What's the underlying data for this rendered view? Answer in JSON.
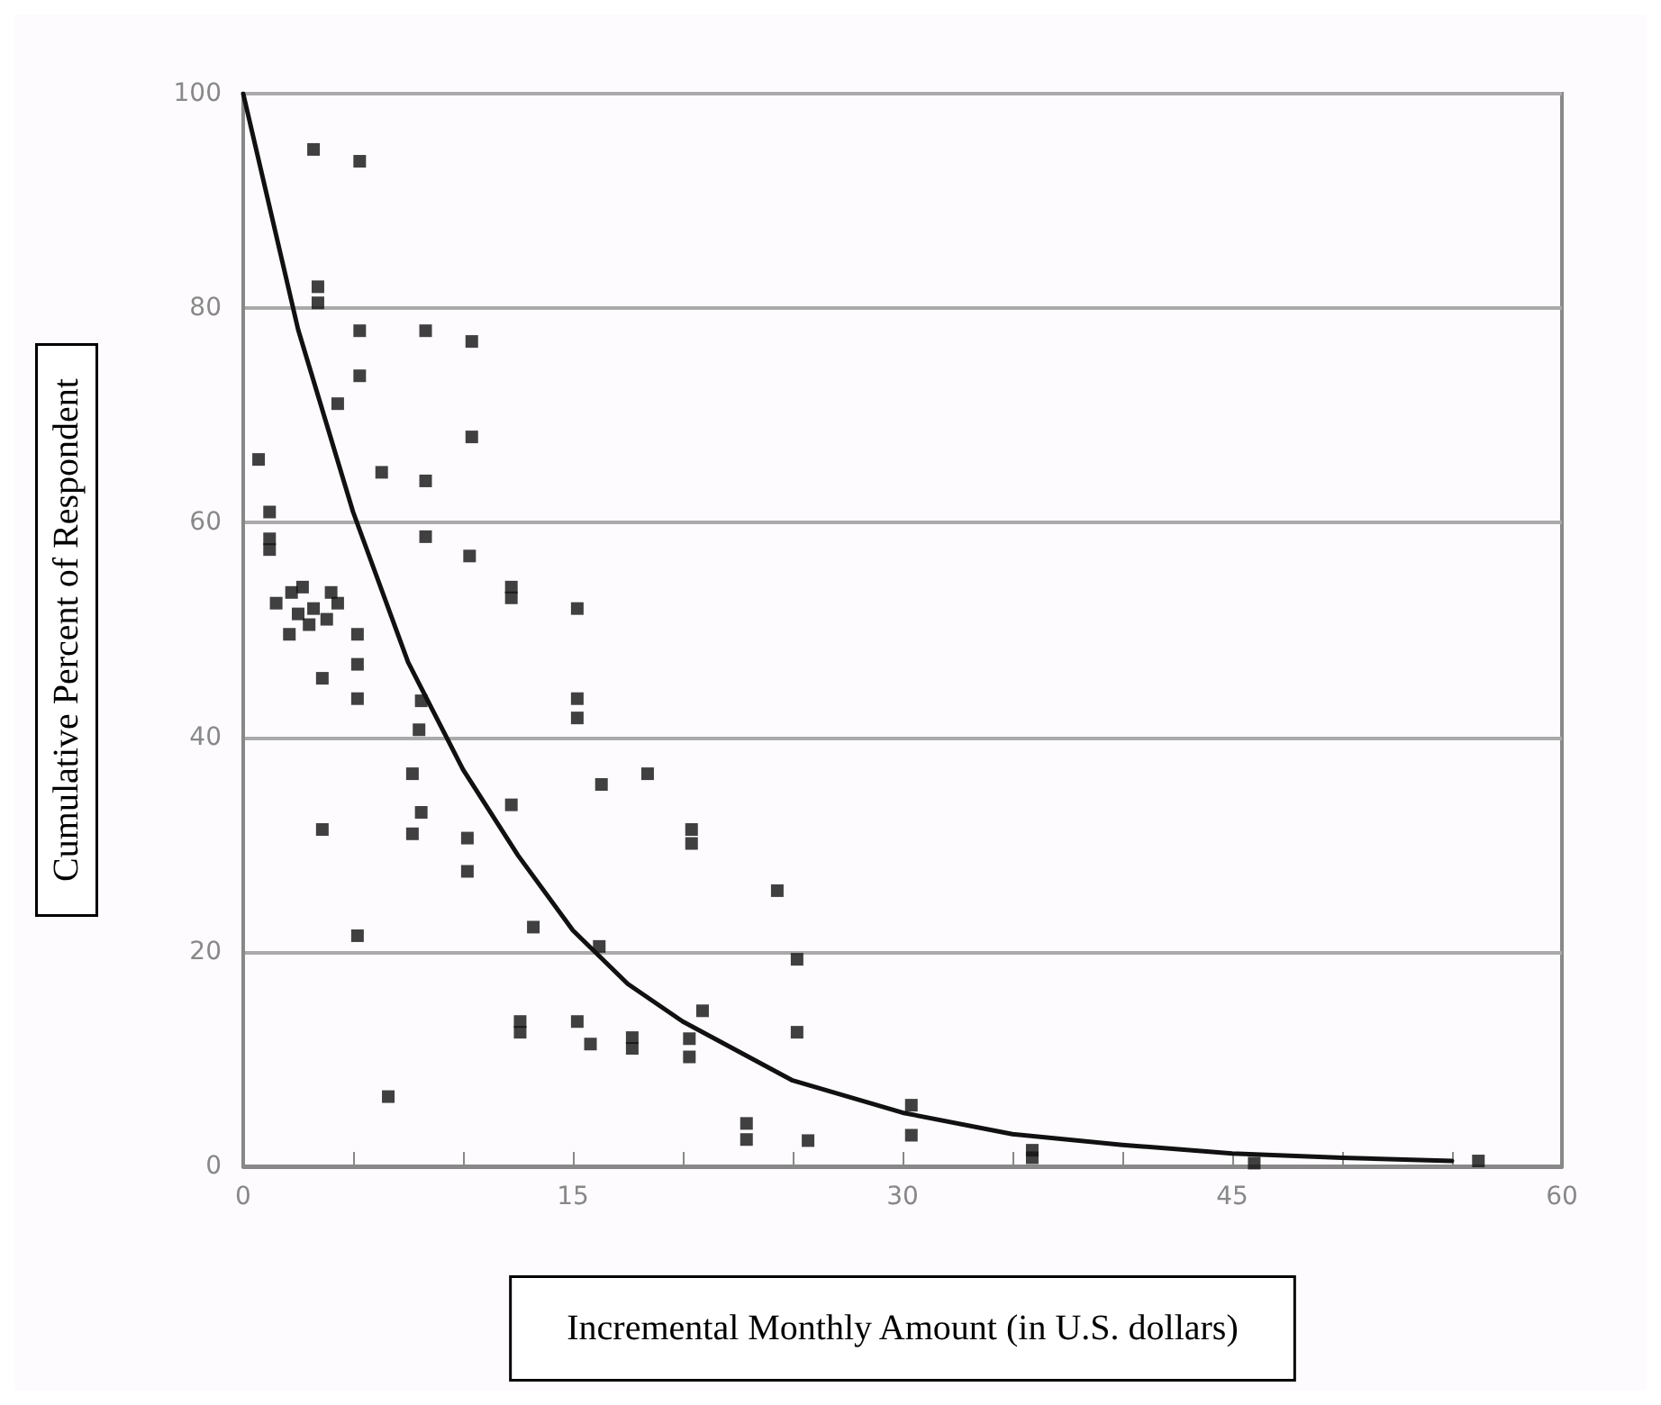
{
  "chart_data": {
    "type": "scatter",
    "xlabel": "Incremental Monthly Amount (in U.S. dollars)",
    "ylabel": "Cumulative Percent of Respondent",
    "series": [
      {
        "marker": "square",
        "color": "#111111",
        "x": [
          3.2,
          5.3,
          3.4,
          3.4,
          5.3,
          8.3,
          10.4,
          5.3,
          4.3,
          10.4,
          0.7,
          6.3,
          8.3,
          1.2,
          1.2,
          1.2,
          8.3,
          10.3,
          12.2,
          12.2,
          15.2,
          1.5,
          2.2,
          2.5,
          3.0,
          3.2,
          3.8,
          4.0,
          4.3,
          2.7,
          2.1,
          5.2,
          5.2,
          3.6,
          5.2,
          8.1,
          8.0,
          15.2,
          15.2,
          7.7,
          16.3,
          18.4,
          12.2,
          8.1,
          7.7,
          10.2,
          3.6,
          20.4,
          20.4,
          10.2,
          13.2,
          5.2,
          16.2,
          20.9,
          12.6,
          12.6,
          15.2,
          15.8,
          17.7,
          17.7,
          20.3,
          20.3,
          6.6,
          22.9,
          22.9,
          24.3,
          25.2,
          25.2,
          25.7,
          30.4,
          30.4,
          35.9,
          35.9,
          46,
          56.2
        ],
        "values": [
          94.8,
          93.7,
          82,
          80.5,
          77.9,
          77.9,
          76.9,
          73.7,
          71.1,
          68,
          65.9,
          64.7,
          63.9,
          61,
          58.5,
          57.5,
          58.7,
          56.9,
          54,
          53,
          52,
          52.5,
          53.5,
          51.5,
          50.5,
          52,
          51,
          53.5,
          52.5,
          54,
          49.6,
          49.6,
          46.8,
          45.5,
          43.6,
          43.4,
          40.7,
          43.6,
          41.8,
          36.6,
          35.6,
          36.6,
          33.7,
          33,
          31,
          30.6,
          31.4,
          31.4,
          30.1,
          27.5,
          22.3,
          21.5,
          20.5,
          14.5,
          13.5,
          12.5,
          13.5,
          11.4,
          12,
          11,
          11.9,
          10.2,
          6.5,
          4,
          2.5,
          25.7,
          19.3,
          12.5,
          2.4,
          5.7,
          2.9,
          1.5,
          0.8,
          0.3,
          0.5
        ]
      },
      {
        "type": "line",
        "marker": "none",
        "color": "#111111",
        "x": [
          0,
          2.5,
          5,
          7.5,
          10,
          12.5,
          15,
          17.5,
          20,
          25,
          30,
          35,
          40,
          45,
          50,
          55
        ],
        "values": [
          100,
          78,
          61,
          47,
          37,
          29,
          22,
          17,
          13.5,
          8,
          5,
          3,
          2,
          1.2,
          0.8,
          0.5
        ]
      }
    ],
    "xlim": [
      0,
      60
    ],
    "xticks": [
      0,
      {
        "value": 5,
        "label": null
      },
      {
        "value": 10,
        "label": null
      },
      15,
      {
        "value": 20,
        "label": null
      },
      {
        "value": 25,
        "label": null
      },
      30,
      {
        "value": 35,
        "label": null
      },
      {
        "value": 40,
        "label": null
      },
      45,
      {
        "value": 50,
        "label": null
      },
      {
        "value": 55,
        "label": null
      },
      60
    ],
    "ylim": [
      0,
      100
    ],
    "yticks": [
      0,
      20,
      40,
      60,
      80,
      100
    ],
    "grid": "y",
    "line_style": "solid"
  }
}
